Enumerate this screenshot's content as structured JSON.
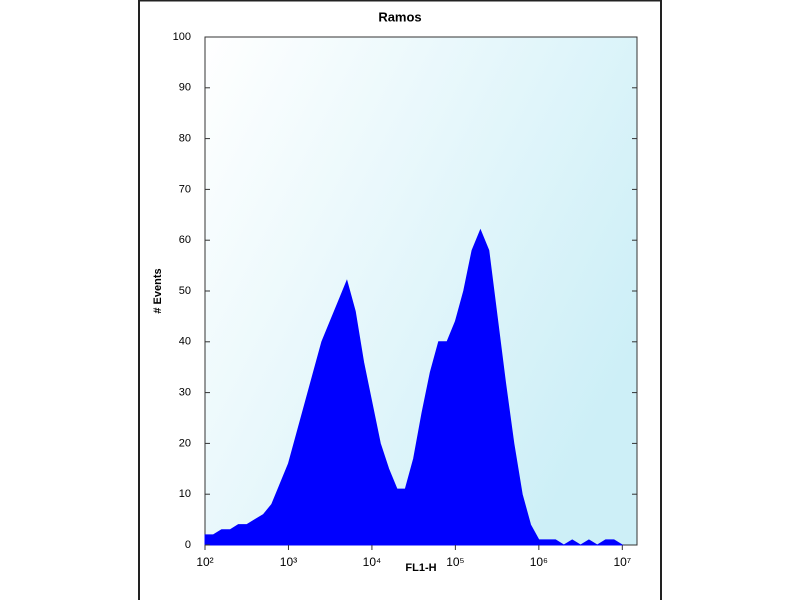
{
  "chart_data": {
    "type": "area",
    "title": "Ramos",
    "x_label": "FL1-H",
    "y_label": "# Events",
    "x_scale": "log",
    "color": "#0000ff",
    "x": [
      100,
      126,
      158,
      200,
      251,
      316,
      398,
      501,
      631,
      794,
      1000,
      1259,
      1585,
      1995,
      2512,
      3162,
      3981,
      5012,
      6310,
      7943,
      10000,
      12589,
      15849,
      19953,
      25119,
      31623,
      39811,
      50119,
      63096,
      79433,
      100000,
      125893,
      158489,
      199526,
      251189,
      316228,
      398107,
      501187,
      630957,
      794328,
      1000000,
      1258925,
      1584893,
      1995262,
      2511886,
      3162278,
      3981072,
      5011872,
      6309573,
      7943282,
      10000000
    ],
    "values": [
      2,
      2,
      3,
      3,
      4,
      4,
      5,
      6,
      8,
      12,
      16,
      22,
      28,
      34,
      40,
      44,
      48,
      52,
      46,
      36,
      28,
      20,
      15,
      11,
      11,
      17,
      26,
      34,
      40,
      40,
      44,
      50,
      58,
      62,
      58,
      45,
      32,
      20,
      10,
      4,
      1,
      1,
      1,
      0,
      1,
      0,
      1,
      0,
      1,
      1,
      0
    ],
    "xlim": [
      100,
      15000000
    ],
    "xticks": [
      {
        "value": 100,
        "label": "10²"
      },
      {
        "value": 1000,
        "label": "10³"
      },
      {
        "value": 10000,
        "label": "10⁴"
      },
      {
        "value": 100000,
        "label": "10⁵"
      },
      {
        "value": 1000000,
        "label": "10⁶"
      },
      {
        "value": 10000000,
        "label": "10⁷"
      }
    ],
    "ylim": [
      0,
      100
    ],
    "yticks": [
      0,
      10,
      20,
      30,
      40,
      50,
      60,
      70,
      80,
      90,
      100
    ]
  }
}
